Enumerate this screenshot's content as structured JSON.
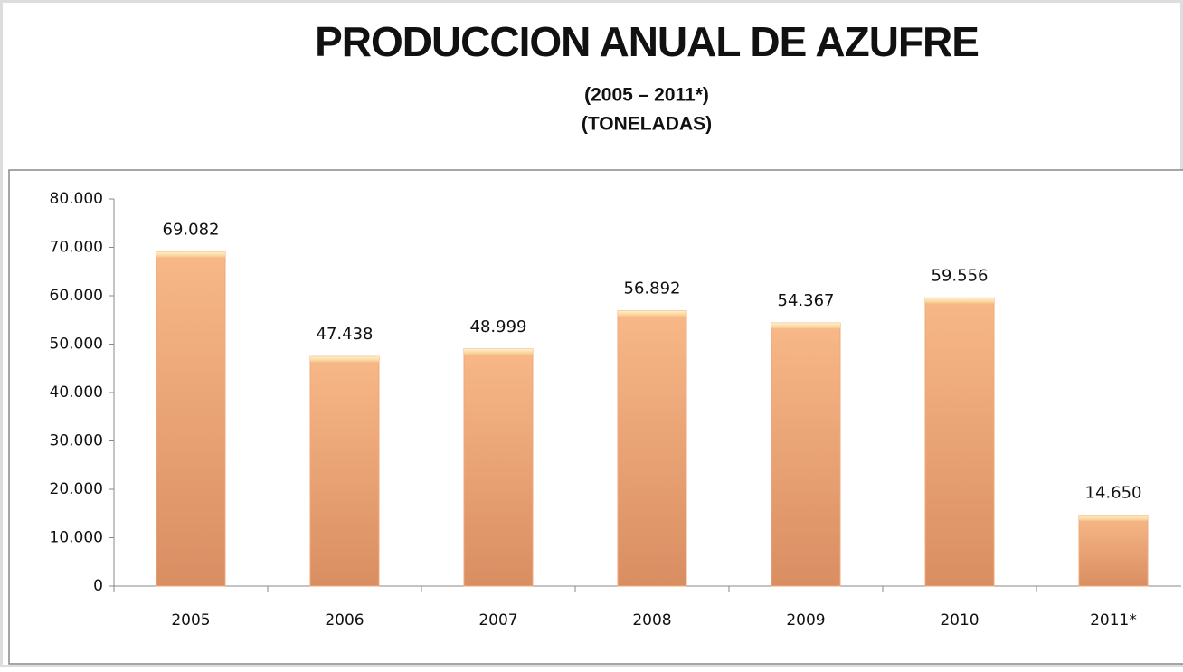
{
  "chart_data": {
    "type": "bar",
    "title": "PRODUCCION ANUAL DE AZUFRE",
    "subtitle": [
      "(2005 – 2011*)",
      "(TONELADAS)"
    ],
    "categories": [
      "2005",
      "2006",
      "2007",
      "2008",
      "2009",
      "2010",
      "2011*"
    ],
    "values": [
      69082,
      47438,
      48999,
      56892,
      54367,
      59556,
      14650
    ],
    "value_labels": [
      "69.082",
      "47.438",
      "48.999",
      "56.892",
      "54.367",
      "59.556",
      "14.650"
    ],
    "color": "#f0a878",
    "ylim": [
      0,
      80000
    ],
    "yticks": [
      {
        "value": 0,
        "label": "0"
      },
      {
        "value": 10000,
        "label": "10.000"
      },
      {
        "value": 20000,
        "label": "20.000"
      },
      {
        "value": 30000,
        "label": "30.000"
      },
      {
        "value": 40000,
        "label": "40.000"
      },
      {
        "value": 50000,
        "label": "50.000"
      },
      {
        "value": 60000,
        "label": "60.000"
      },
      {
        "value": 70000,
        "label": "70.000"
      },
      {
        "value": 80000,
        "label": "80.000"
      }
    ],
    "grid": false
  }
}
